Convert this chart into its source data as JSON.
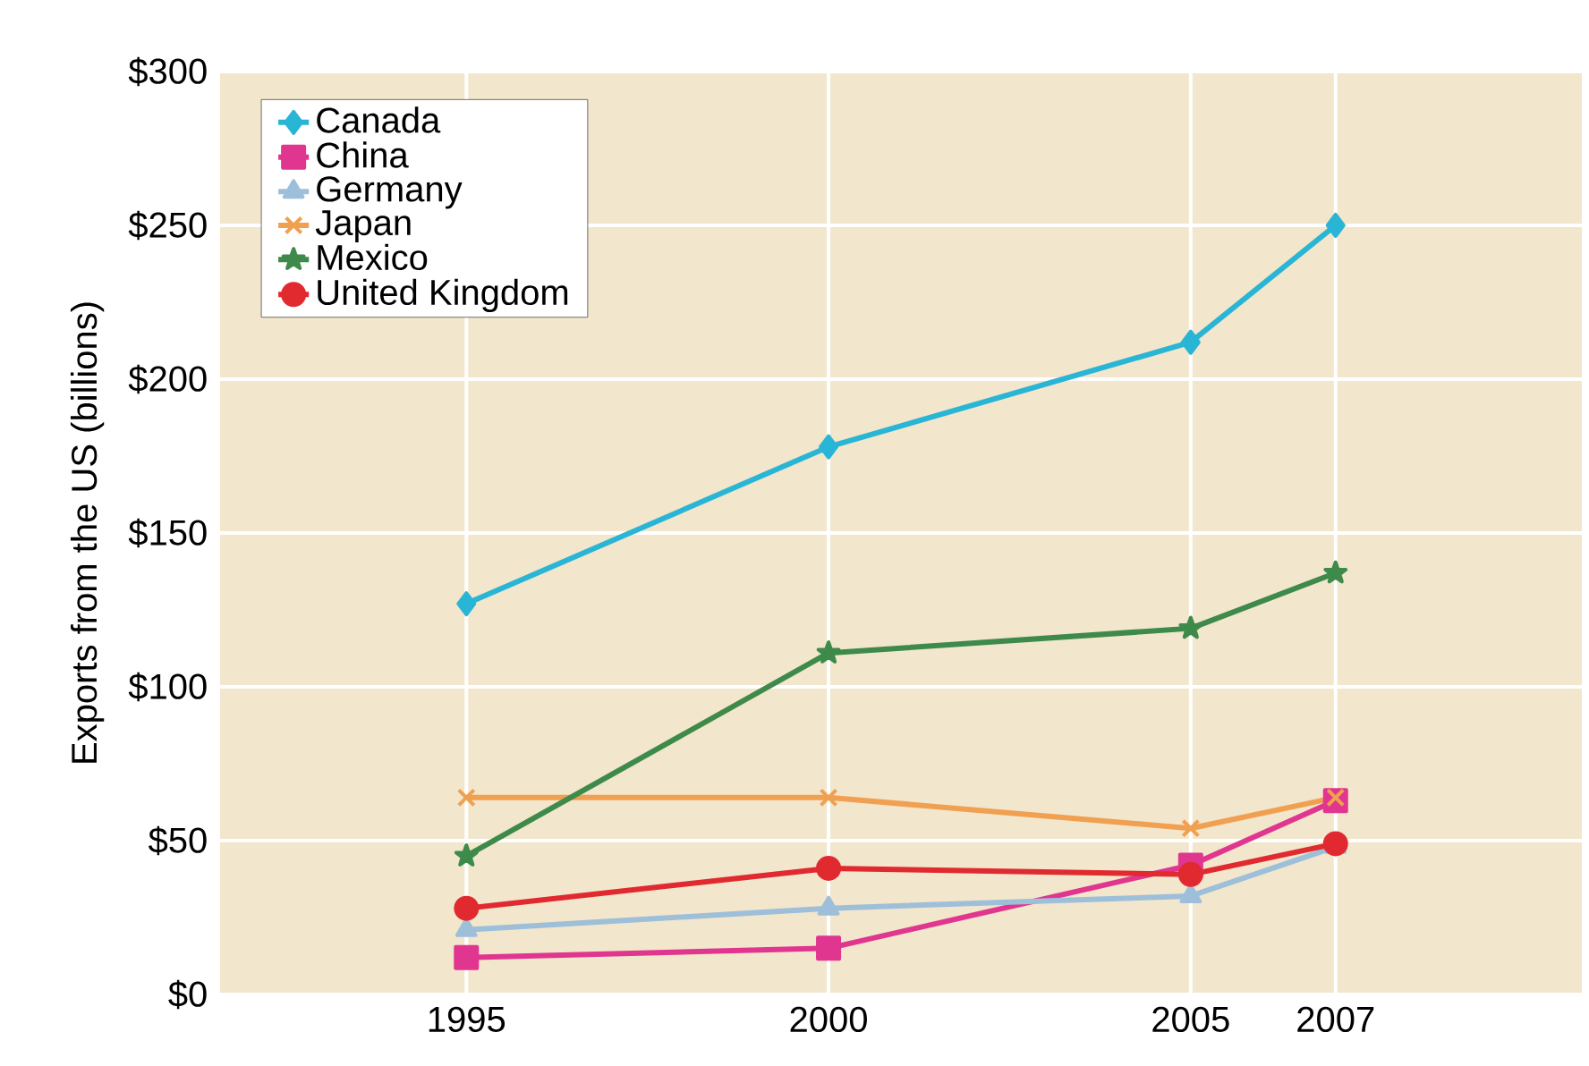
{
  "chart_data": {
    "type": "line",
    "ylabel": "Exports from the US (billions)",
    "x": [
      1995,
      2000,
      2005,
      2007
    ],
    "xlim": [
      1991.6,
      2010.4
    ],
    "xticks": [
      1995,
      2000,
      2005,
      2007
    ],
    "ylim": [
      0,
      300
    ],
    "yticks": [
      {
        "value": 0,
        "label": "$0"
      },
      {
        "value": 50,
        "label": "$50"
      },
      {
        "value": 100,
        "label": "$100"
      },
      {
        "value": 150,
        "label": "$150"
      },
      {
        "value": 200,
        "label": "$200"
      },
      {
        "value": 250,
        "label": "$250"
      },
      {
        "value": 300,
        "label": "$300"
      }
    ],
    "grid": true,
    "legend": "top left",
    "line_style": "solid",
    "series": [
      {
        "name": "Canada",
        "color": "#29b5d5",
        "marker": "diamond",
        "values": [
          127,
          178,
          212,
          250
        ]
      },
      {
        "name": "China",
        "color": "#e0368f",
        "marker": "square",
        "values": [
          12,
          15,
          42,
          63
        ]
      },
      {
        "name": "Germany",
        "color": "#9dbfd9",
        "marker": "triangle",
        "values": [
          21,
          28,
          32,
          48
        ]
      },
      {
        "name": "Japan",
        "color": "#f0a050",
        "marker": "cross",
        "values": [
          64,
          64,
          54,
          64
        ]
      },
      {
        "name": "Mexico",
        "color": "#3e8a4a",
        "marker": "star",
        "values": [
          45,
          111,
          119,
          137
        ]
      },
      {
        "name": "United Kingdom",
        "color": "#e02a30",
        "marker": "circle",
        "values": [
          28,
          41,
          39,
          49
        ]
      }
    ]
  }
}
